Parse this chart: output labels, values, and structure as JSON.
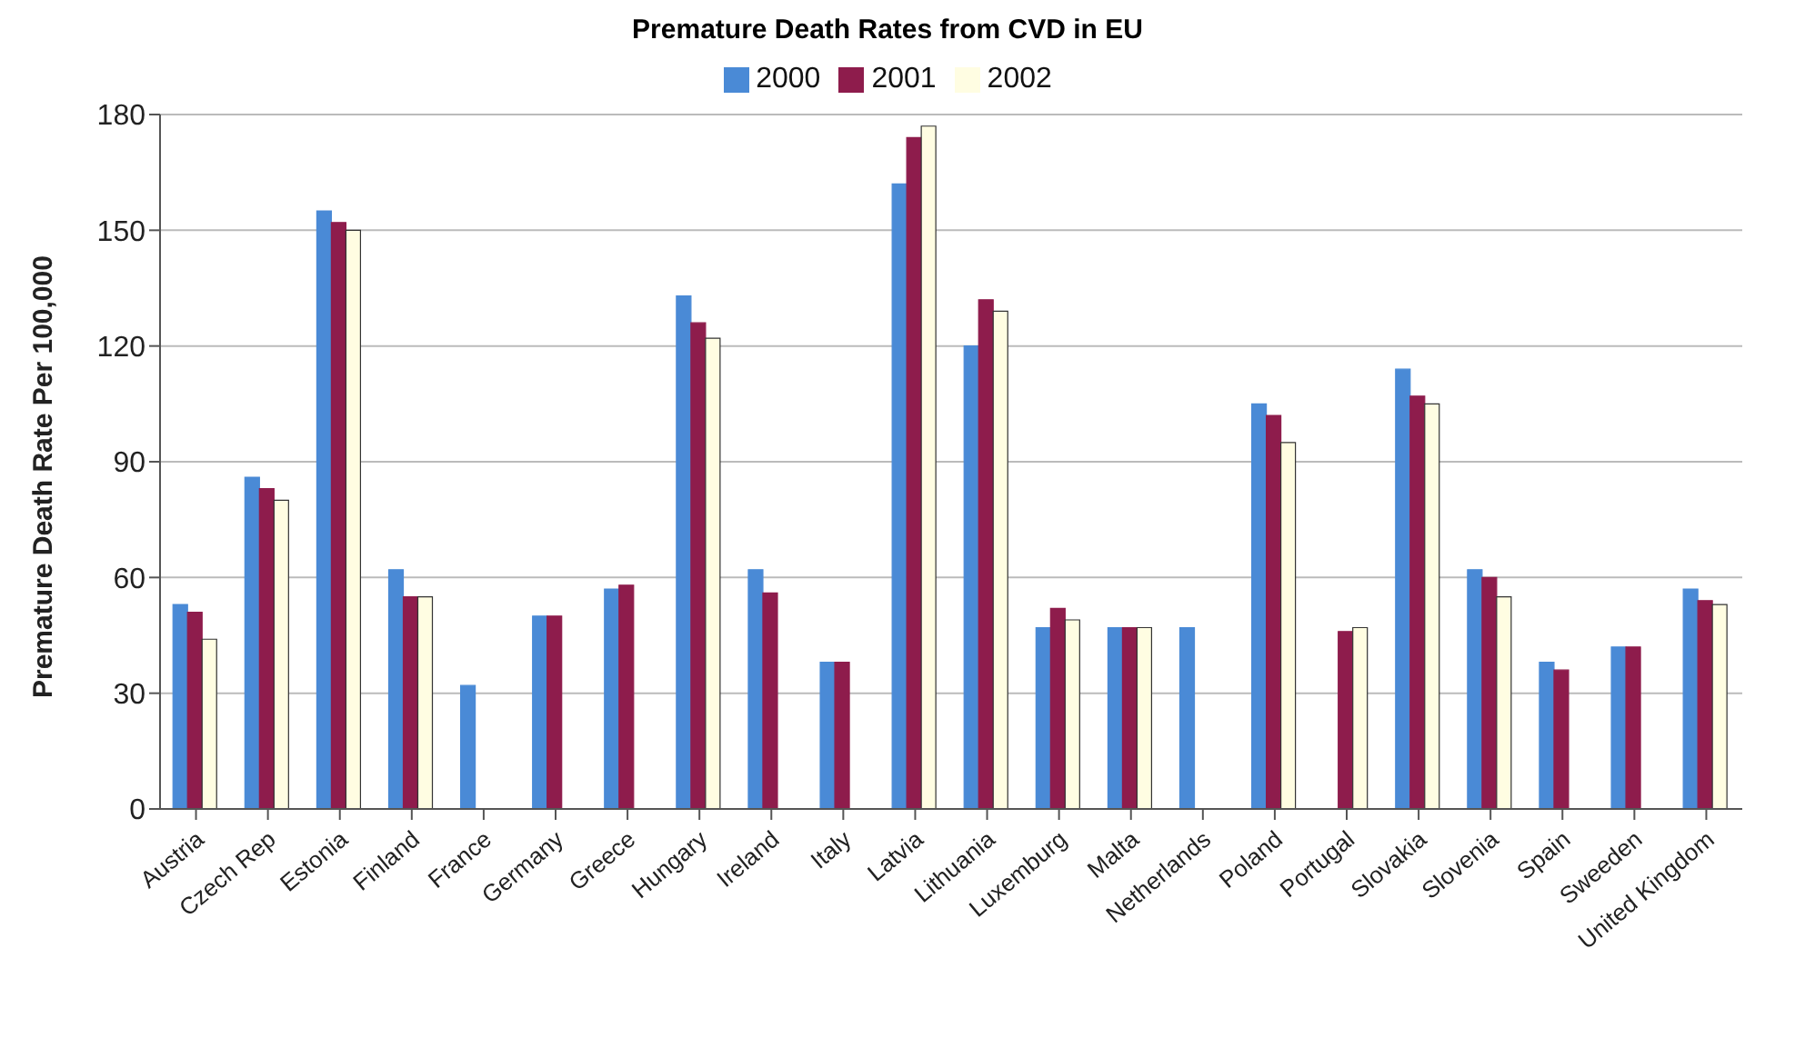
{
  "chart_data": {
    "type": "bar",
    "title": "Premature Death Rates from CVD in EU",
    "ylabel": "Premature Death Rate Per 100,000",
    "categories": [
      "Austria",
      "Czech Rep",
      "Estonia",
      "Finland",
      "France",
      "Germany",
      "Greece",
      "Hungary",
      "Ireland",
      "Italy",
      "Latvia",
      "Lithuania",
      "Luxemburg",
      "Malta",
      "Netherlands",
      "Poland",
      "Portugal",
      "Slovakia",
      "Slovenia",
      "Spain",
      "Sweeden",
      "United Kingdom"
    ],
    "series": [
      {
        "name": "2000",
        "color": "#4a8ad6",
        "values": [
          53,
          86,
          155,
          62,
          32,
          50,
          57,
          133,
          62,
          38,
          162,
          120,
          47,
          47,
          47,
          105,
          null,
          114,
          62,
          38,
          42,
          57
        ]
      },
      {
        "name": "2001",
        "color": "#8e1c4c",
        "values": [
          51,
          83,
          152,
          55,
          null,
          50,
          58,
          126,
          56,
          38,
          174,
          132,
          52,
          47,
          null,
          102,
          46,
          107,
          60,
          36,
          42,
          54
        ]
      },
      {
        "name": "2002",
        "color": "#fffde2",
        "values": [
          44,
          80,
          150,
          55,
          null,
          null,
          null,
          122,
          null,
          null,
          177,
          129,
          49,
          47,
          null,
          95,
          47,
          105,
          55,
          null,
          null,
          53
        ]
      }
    ],
    "ylim": [
      0,
      180
    ],
    "yticks": [
      0,
      30,
      60,
      90,
      120,
      150,
      180
    ],
    "grid": "y",
    "legend": "top"
  }
}
